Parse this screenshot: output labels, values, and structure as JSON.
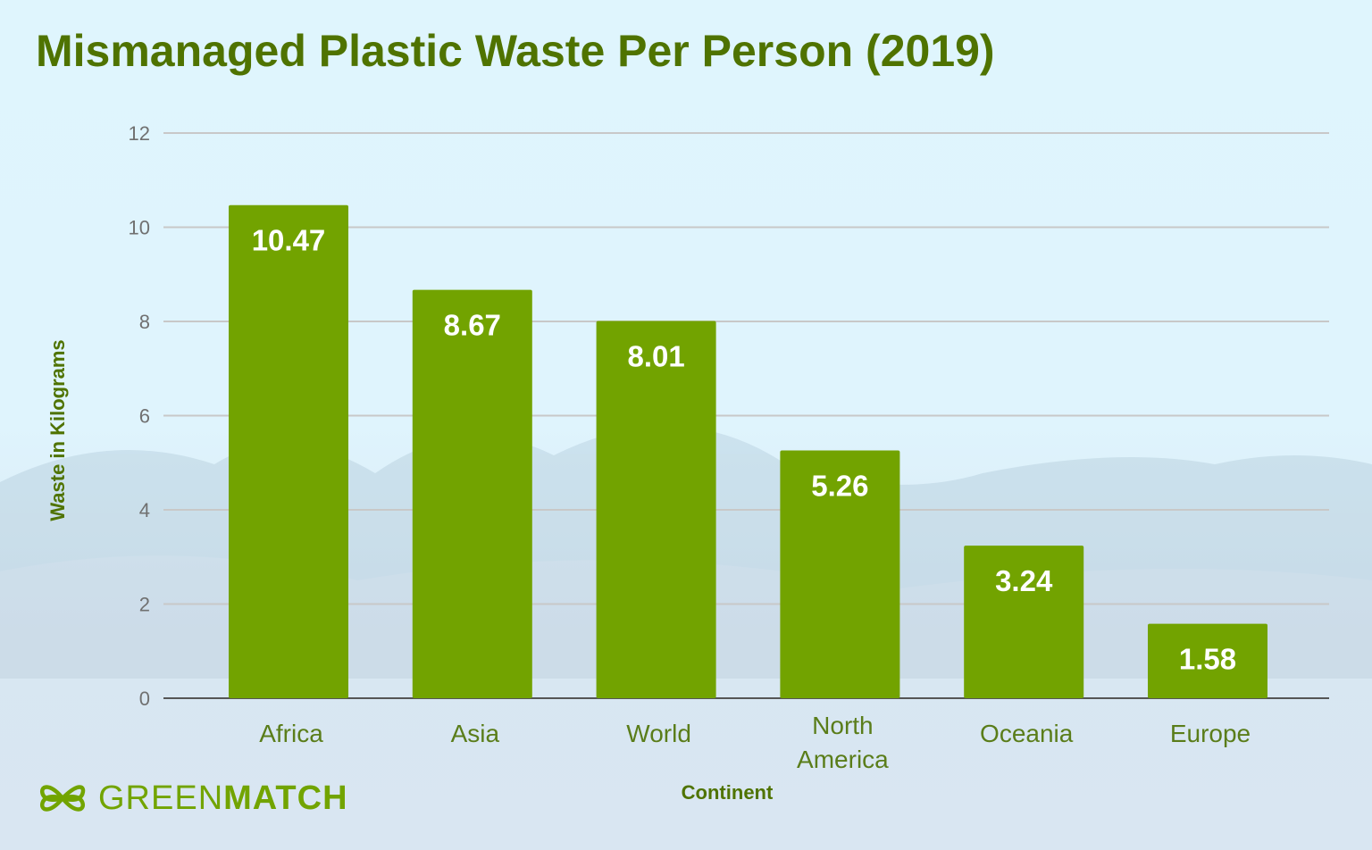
{
  "chart_data": {
    "type": "bar",
    "title": "Mismanaged Plastic Waste Per Person (2019)",
    "xlabel": "Continent",
    "ylabel": "Waste in Kilograms",
    "categories": [
      "Africa",
      "Asia",
      "World",
      "North America",
      "Oceania",
      "Europe"
    ],
    "values": [
      10.47,
      8.67,
      8.01,
      5.26,
      3.24,
      1.58
    ],
    "data_labels": [
      "10.47",
      "8.67",
      "8.01",
      "5.26",
      "3.24",
      "1.58"
    ],
    "ylim": [
      0,
      12
    ],
    "yticks": [
      "0",
      "2",
      "4",
      "6",
      "8",
      "10",
      "12"
    ],
    "grid": true,
    "bar_color": "#72a300",
    "title_color": "#4f7300"
  },
  "brand": {
    "logo_light": "GREEN",
    "logo_bold": "MATCH"
  }
}
